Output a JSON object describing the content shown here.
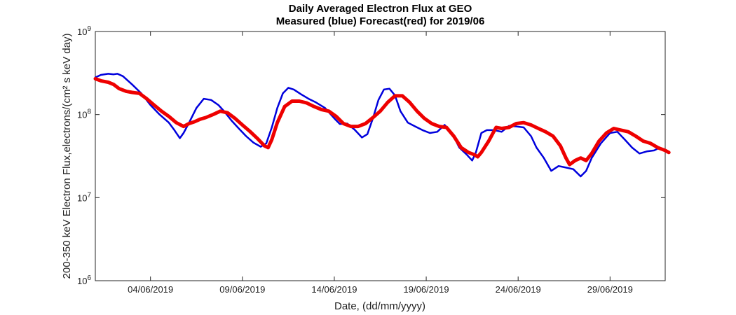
{
  "chart_data": {
    "type": "line",
    "title": "Daily Averaged Electron Flux at GEO",
    "subtitle": "Measured (blue) Forecast(red) for 2019/06",
    "xlabel": "Date, (dd/mm/yyyy)",
    "ylabel": "200-350 keV Electron Flux,electrons/(cm² s keV day)",
    "x_unit": "day of June 2019",
    "xlim": [
      1,
      32
    ],
    "y_scale": "log",
    "ylim": [
      1000000,
      1000000000
    ],
    "x_ticks": [
      {
        "value": 4,
        "label": "04/06/2019"
      },
      {
        "value": 9,
        "label": "09/06/2019"
      },
      {
        "value": 14,
        "label": "14/06/2019"
      },
      {
        "value": 19,
        "label": "19/06/2019"
      },
      {
        "value": 24,
        "label": "24/06/2019"
      },
      {
        "value": 29,
        "label": "29/06/2019"
      }
    ],
    "y_ticks": [
      {
        "value": 1000000,
        "base": "10",
        "exp": "6"
      },
      {
        "value": 10000000,
        "base": "10",
        "exp": "7"
      },
      {
        "value": 100000000,
        "base": "10",
        "exp": "8"
      },
      {
        "value": 1000000000,
        "base": "10",
        "exp": "9"
      }
    ],
    "grid": false,
    "legend": "none",
    "series": [
      {
        "color": "#0000dd",
        "points": [
          [
            1.0,
            280000000
          ],
          [
            1.3,
            300000000
          ],
          [
            1.7,
            310000000
          ],
          [
            2.0,
            305000000
          ],
          [
            2.2,
            310000000
          ],
          [
            2.5,
            290000000
          ],
          [
            3.0,
            230000000
          ],
          [
            3.5,
            180000000
          ],
          [
            4.0,
            130000000
          ],
          [
            4.5,
            100000000
          ],
          [
            5.0,
            80000000
          ],
          [
            5.3,
            65000000
          ],
          [
            5.6,
            52000000
          ],
          [
            5.8,
            60000000
          ],
          [
            6.1,
            80000000
          ],
          [
            6.5,
            120000000
          ],
          [
            6.9,
            155000000
          ],
          [
            7.3,
            150000000
          ],
          [
            7.7,
            130000000
          ],
          [
            8.0,
            110000000
          ],
          [
            8.4,
            85000000
          ],
          [
            8.8,
            68000000
          ],
          [
            9.2,
            55000000
          ],
          [
            9.6,
            46000000
          ],
          [
            10.0,
            41000000
          ],
          [
            10.3,
            45000000
          ],
          [
            10.6,
            70000000
          ],
          [
            10.9,
            120000000
          ],
          [
            11.2,
            180000000
          ],
          [
            11.5,
            210000000
          ],
          [
            11.8,
            200000000
          ],
          [
            12.2,
            175000000
          ],
          [
            12.6,
            155000000
          ],
          [
            13.0,
            140000000
          ],
          [
            13.5,
            120000000
          ],
          [
            14.0,
            90000000
          ],
          [
            14.3,
            77000000
          ],
          [
            14.7,
            78000000
          ],
          [
            15.1,
            66000000
          ],
          [
            15.5,
            53000000
          ],
          [
            15.8,
            58000000
          ],
          [
            16.1,
            90000000
          ],
          [
            16.4,
            150000000
          ],
          [
            16.7,
            200000000
          ],
          [
            17.0,
            205000000
          ],
          [
            17.3,
            170000000
          ],
          [
            17.6,
            110000000
          ],
          [
            18.0,
            80000000
          ],
          [
            18.4,
            72000000
          ],
          [
            18.8,
            65000000
          ],
          [
            19.2,
            60000000
          ],
          [
            19.6,
            62000000
          ],
          [
            20.0,
            75000000
          ],
          [
            20.4,
            60000000
          ],
          [
            20.8,
            40000000
          ],
          [
            21.2,
            33000000
          ],
          [
            21.5,
            28000000
          ],
          [
            21.7,
            35000000
          ],
          [
            22.0,
            60000000
          ],
          [
            22.3,
            65000000
          ],
          [
            22.7,
            65000000
          ],
          [
            23.1,
            62000000
          ],
          [
            23.5,
            73000000
          ],
          [
            23.9,
            72000000
          ],
          [
            24.3,
            70000000
          ],
          [
            24.7,
            55000000
          ],
          [
            25.0,
            40000000
          ],
          [
            25.4,
            30000000
          ],
          [
            25.8,
            21000000
          ],
          [
            26.2,
            24000000
          ],
          [
            26.6,
            23000000
          ],
          [
            27.0,
            22000000
          ],
          [
            27.4,
            18000000
          ],
          [
            27.7,
            21000000
          ],
          [
            28.0,
            30000000
          ],
          [
            28.5,
            45000000
          ],
          [
            29.0,
            60000000
          ],
          [
            29.4,
            62000000
          ],
          [
            29.8,
            50000000
          ],
          [
            30.2,
            40000000
          ],
          [
            30.6,
            34000000
          ],
          [
            31.0,
            36000000
          ],
          [
            31.4,
            37000000
          ],
          [
            31.7,
            40000000
          ],
          [
            32.1,
            35000000
          ]
        ]
      },
      {
        "color": "#ee0000",
        "points": [
          [
            1.0,
            270000000
          ],
          [
            1.3,
            255000000
          ],
          [
            1.7,
            245000000
          ],
          [
            2.0,
            230000000
          ],
          [
            2.3,
            205000000
          ],
          [
            2.7,
            190000000
          ],
          [
            3.0,
            185000000
          ],
          [
            3.4,
            180000000
          ],
          [
            3.8,
            155000000
          ],
          [
            4.2,
            130000000
          ],
          [
            4.6,
            110000000
          ],
          [
            5.0,
            95000000
          ],
          [
            5.4,
            80000000
          ],
          [
            5.8,
            72000000
          ],
          [
            6.1,
            78000000
          ],
          [
            6.4,
            82000000
          ],
          [
            6.7,
            88000000
          ],
          [
            7.0,
            92000000
          ],
          [
            7.4,
            100000000
          ],
          [
            7.8,
            110000000
          ],
          [
            8.2,
            105000000
          ],
          [
            8.6,
            90000000
          ],
          [
            9.0,
            75000000
          ],
          [
            9.4,
            63000000
          ],
          [
            9.8,
            52000000
          ],
          [
            10.2,
            42000000
          ],
          [
            10.4,
            40000000
          ],
          [
            10.6,
            50000000
          ],
          [
            10.9,
            80000000
          ],
          [
            11.3,
            125000000
          ],
          [
            11.7,
            145000000
          ],
          [
            12.1,
            145000000
          ],
          [
            12.5,
            138000000
          ],
          [
            12.9,
            125000000
          ],
          [
            13.3,
            115000000
          ],
          [
            13.7,
            110000000
          ],
          [
            14.1,
            95000000
          ],
          [
            14.5,
            78000000
          ],
          [
            14.9,
            72000000
          ],
          [
            15.3,
            72000000
          ],
          [
            15.7,
            78000000
          ],
          [
            16.1,
            92000000
          ],
          [
            16.5,
            110000000
          ],
          [
            16.9,
            140000000
          ],
          [
            17.3,
            168000000
          ],
          [
            17.7,
            168000000
          ],
          [
            18.1,
            140000000
          ],
          [
            18.5,
            110000000
          ],
          [
            18.9,
            90000000
          ],
          [
            19.3,
            78000000
          ],
          [
            19.7,
            72000000
          ],
          [
            20.1,
            70000000
          ],
          [
            20.5,
            55000000
          ],
          [
            20.9,
            40000000
          ],
          [
            21.3,
            35000000
          ],
          [
            21.6,
            33000000
          ],
          [
            21.8,
            31000000
          ],
          [
            22.0,
            35000000
          ],
          [
            22.4,
            48000000
          ],
          [
            22.8,
            70000000
          ],
          [
            23.1,
            68000000
          ],
          [
            23.5,
            70000000
          ],
          [
            23.9,
            78000000
          ],
          [
            24.3,
            80000000
          ],
          [
            24.7,
            75000000
          ],
          [
            25.1,
            68000000
          ],
          [
            25.5,
            62000000
          ],
          [
            25.9,
            55000000
          ],
          [
            26.3,
            42000000
          ],
          [
            26.6,
            30000000
          ],
          [
            26.8,
            25000000
          ],
          [
            27.1,
            28000000
          ],
          [
            27.4,
            30000000
          ],
          [
            27.7,
            28000000
          ],
          [
            28.0,
            34000000
          ],
          [
            28.4,
            48000000
          ],
          [
            28.8,
            60000000
          ],
          [
            29.2,
            68000000
          ],
          [
            29.6,
            65000000
          ],
          [
            30.0,
            62000000
          ],
          [
            30.4,
            55000000
          ],
          [
            30.8,
            48000000
          ],
          [
            31.2,
            45000000
          ],
          [
            31.6,
            40000000
          ],
          [
            32.0,
            37000000
          ],
          [
            32.2,
            35000000
          ]
        ]
      }
    ]
  }
}
